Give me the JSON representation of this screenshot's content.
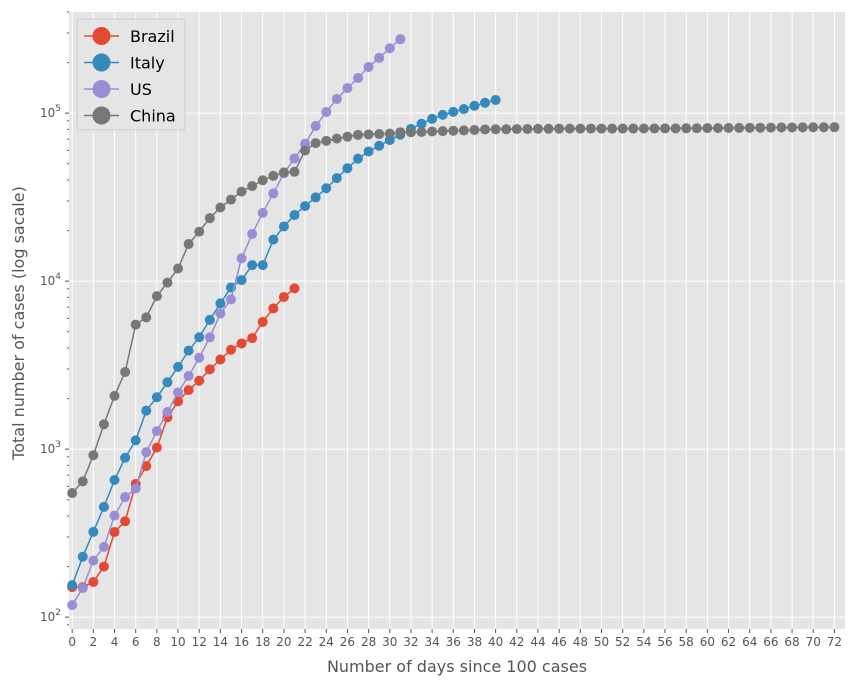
{
  "chart_data": {
    "type": "line",
    "xlabel": "Number of days since 100 cases",
    "ylabel": "Total number of cases  (log sacale)",
    "xlim": [
      -0.3,
      73
    ],
    "ylim": [
      85,
      400000
    ],
    "yscale": "log",
    "grid": true,
    "legend_position": "top-left",
    "x_ticks": [
      0,
      2,
      4,
      6,
      8,
      10,
      12,
      14,
      16,
      18,
      20,
      22,
      24,
      26,
      28,
      30,
      32,
      34,
      36,
      38,
      40,
      42,
      44,
      46,
      48,
      50,
      52,
      54,
      56,
      58,
      60,
      62,
      64,
      66,
      68,
      70,
      72
    ],
    "y_ticks": [
      {
        "value": 100,
        "base": "10",
        "exp": "2"
      },
      {
        "value": 1000,
        "base": "10",
        "exp": "3"
      },
      {
        "value": 10000,
        "base": "10",
        "exp": "4"
      },
      {
        "value": 100000,
        "base": "10",
        "exp": "5"
      }
    ],
    "series": [
      {
        "name": "Brazil",
        "color": "#E24A33",
        "values": [
          151,
          151,
          162,
          200,
          321,
          372,
          621,
          793,
          1021,
          1546,
          1924,
          2247,
          2554,
          2985,
          3417,
          3904,
          4256,
          4579,
          5717,
          6880,
          8044,
          9056
        ]
      },
      {
        "name": "Italy",
        "color": "#348ABD",
        "values": [
          155,
          229,
          322,
          453,
          655,
          888,
          1128,
          1694,
          2036,
          2502,
          3089,
          3858,
          4636,
          5883,
          7375,
          9172,
          10149,
          12462,
          12462,
          17660,
          21157,
          24747,
          27980,
          31506,
          35713,
          41035,
          47021,
          53578,
          59138,
          63927,
          69176,
          74386,
          80589,
          86498,
          92472,
          97689,
          101739,
          105792,
          110574,
          115242,
          119827
        ]
      },
      {
        "name": "US",
        "color": "#988ED5",
        "values": [
          118,
          149,
          217,
          262,
          402,
          518,
          583,
          959,
          1281,
          1663,
          2179,
          2727,
          3499,
          4632,
          6421,
          7783,
          13677,
          19100,
          25489,
          33276,
          43847,
          53740,
          65778,
          83836,
          101657,
          121478,
          140886,
          161807,
          188172,
          213372,
          243453,
          275586
        ]
      },
      {
        "name": "China",
        "color": "#777777",
        "values": [
          548,
          643,
          920,
          1406,
          2075,
          2877,
          5509,
          6087,
          8141,
          9802,
          11891,
          16630,
          19716,
          23707,
          27440,
          30587,
          34110,
          36814,
          39829,
          42354,
          44386,
          44759,
          59895,
          66358,
          68413,
          70513,
          72434,
          74211,
          74619,
          75077,
          75550,
          77001,
          77022,
          77241,
          77754,
          78166,
          78600,
          78928,
          79356,
          79932,
          80136,
          80261,
          80386,
          80537,
          80690,
          80770,
          80823,
          80860,
          80887,
          80921,
          80932,
          80945,
          80977,
          81003,
          81033,
          81058,
          81102,
          81156,
          81250,
          81305,
          81435,
          81498,
          81591,
          81661,
          81782,
          81897,
          81999,
          82122,
          82198,
          82279,
          82361,
          82432,
          82511
        ]
      }
    ]
  }
}
